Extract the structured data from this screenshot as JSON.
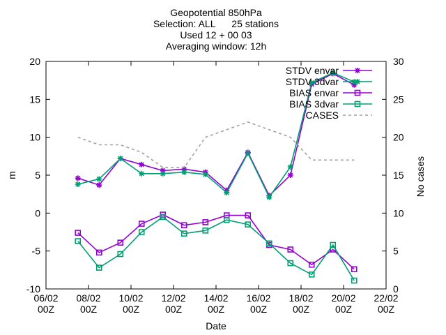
{
  "colors": {
    "envar": "#9400d3",
    "threedvar": "#009e73",
    "cases": "#a0a0a0",
    "axis": "#000000"
  },
  "chart_data": {
    "type": "line",
    "title_lines": [
      "Geopotential 850hPa",
      "Selection: ALL      25 stations",
      "Used 12 + 00 03",
      "Averaging window: 12h"
    ],
    "xlabel": "Date",
    "ylabel": "m",
    "y2label": "No cases",
    "xlim": [
      0,
      16
    ],
    "ylim": [
      -10,
      20
    ],
    "y2lim": [
      0,
      30
    ],
    "yticks": [
      "-10",
      "-5",
      "0",
      "5",
      "10",
      "15",
      "20"
    ],
    "y2ticks": [
      "0",
      "5",
      "10",
      "15",
      "20",
      "25",
      "30"
    ],
    "xticks": [
      {
        "x": 0,
        "top": "06/02",
        "bottom": "00Z"
      },
      {
        "x": 2,
        "top": "08/02",
        "bottom": "00Z"
      },
      {
        "x": 4,
        "top": "10/02",
        "bottom": "00Z"
      },
      {
        "x": 6,
        "top": "12/02",
        "bottom": "00Z"
      },
      {
        "x": 8,
        "top": "14/02",
        "bottom": "00Z"
      },
      {
        "x": 10,
        "top": "16/02",
        "bottom": "00Z"
      },
      {
        "x": 12,
        "top": "18/02",
        "bottom": "00Z"
      },
      {
        "x": 14,
        "top": "20/02",
        "bottom": "00Z"
      },
      {
        "x": 16,
        "top": "22/02",
        "bottom": "00Z"
      }
    ],
    "x": [
      1.5,
      2.5,
      3.5,
      4.5,
      5.5,
      6.5,
      7.5,
      8.5,
      9.5,
      10.5,
      11.5,
      12.5,
      13.5,
      14.5
    ],
    "series": [
      {
        "name": "STDV envar",
        "color": "#9400d3",
        "marker": "star",
        "dashed": false,
        "values": [
          4.6,
          3.7,
          7.2,
          6.4,
          5.6,
          5.8,
          5.4,
          3.0,
          8.0,
          2.3,
          5.0,
          17.0,
          18.4,
          16.9
        ]
      },
      {
        "name": "STDV 3dvar",
        "color": "#009e73",
        "marker": "star",
        "dashed": false,
        "values": [
          3.8,
          4.5,
          7.2,
          5.2,
          5.2,
          5.4,
          5.1,
          2.7,
          7.9,
          2.1,
          6.1,
          17.2,
          18.5,
          17.3
        ]
      },
      {
        "name": "BIAS envar",
        "color": "#9400d3",
        "marker": "square",
        "dashed": false,
        "values": [
          -2.6,
          -5.2,
          -3.9,
          -1.4,
          -0.2,
          -1.6,
          -1.2,
          -0.3,
          -0.3,
          -4.2,
          -4.8,
          -6.8,
          -4.8,
          -7.4
        ]
      },
      {
        "name": "BIAS 3dvar",
        "color": "#009e73",
        "marker": "square",
        "dashed": false,
        "values": [
          -3.7,
          -7.2,
          -5.4,
          -2.5,
          -0.5,
          -2.7,
          -2.3,
          -0.9,
          -1.5,
          -4.0,
          -6.6,
          -8.1,
          -4.2,
          -8.9
        ]
      },
      {
        "name": "CASES",
        "color": "#a0a0a0",
        "marker": "none",
        "dashed": true,
        "axis": "y2",
        "values": [
          20,
          19,
          19,
          18,
          16,
          16,
          20,
          21,
          22,
          21,
          20,
          17,
          17,
          17
        ]
      }
    ],
    "legend_position": "top-right",
    "grid": false
  }
}
